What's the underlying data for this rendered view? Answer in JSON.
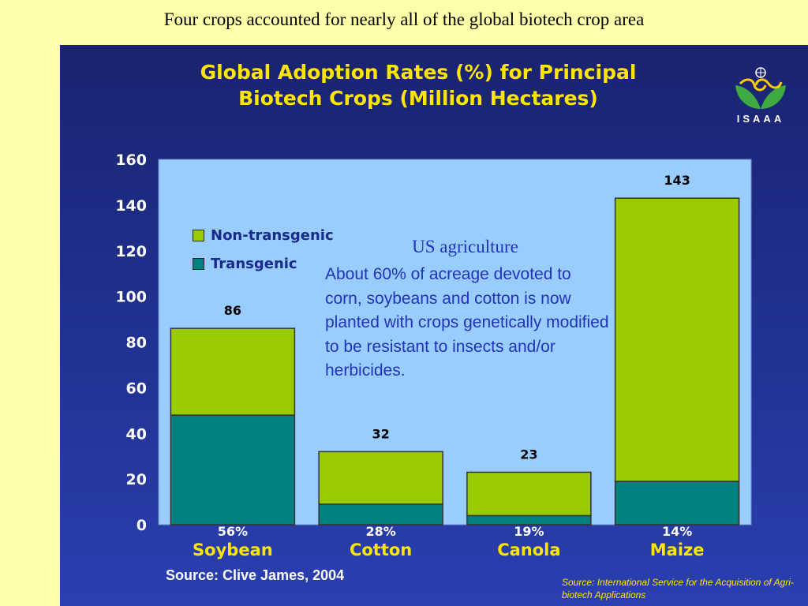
{
  "slide": {
    "title": "Four crops accounted for nearly all of the global biotech crop area"
  },
  "logo": {
    "text": "ISAAA",
    "icon": "isaaa-leaf-logo-icon"
  },
  "annotation": {
    "title": "US agriculture",
    "body": "About 60% of acreage devoted to corn, soybeans and cotton is now planted with crops genetically modified to be resistant to insects and/or herbicides."
  },
  "sources": {
    "left": "Source: Clive James, 2004",
    "right": "Source: International Service for the Acquisition of Agri-biotech Applications"
  },
  "colors": {
    "background": "#FFFFAA",
    "panel": "#1F2E8A",
    "plot_area": "#99CCFF",
    "non_transgenic": "#99CC00",
    "transgenic": "#008080",
    "title_yellow": "#FFE600"
  },
  "chart_data": {
    "type": "bar",
    "stacked": true,
    "title_line1": "Global Adoption Rates (%) for Principal",
    "title_line2": "Biotech Crops (Million Hectares)",
    "categories": [
      "Soybean",
      "Cotton",
      "Canola",
      "Maize"
    ],
    "adoption_rates": [
      "56%",
      "28%",
      "19%",
      "14%"
    ],
    "totals": [
      86,
      32,
      23,
      143
    ],
    "total_labels": [
      "86",
      "32",
      "23",
      "143"
    ],
    "series": [
      {
        "name": "Transgenic",
        "color": "#008080",
        "values": [
          48,
          9,
          4,
          19
        ]
      },
      {
        "name": "Non-transgenic",
        "color": "#99CC00",
        "values": [
          38,
          23,
          19,
          124
        ]
      }
    ],
    "ylim": [
      0,
      160
    ],
    "yticks": [
      0,
      20,
      40,
      60,
      80,
      100,
      120,
      140,
      160
    ],
    "legend": [
      "Non-transgenic",
      "Transgenic"
    ],
    "legend_position": "top-left",
    "grid": false
  }
}
